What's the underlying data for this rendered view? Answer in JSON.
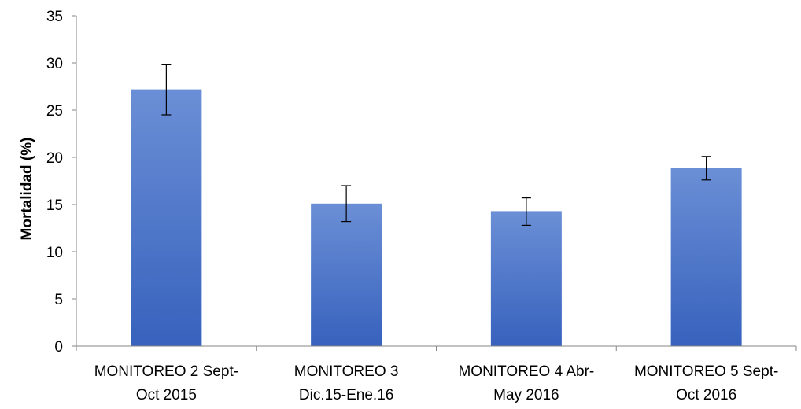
{
  "chart_data": {
    "type": "bar",
    "title": "",
    "xlabel": "",
    "ylabel": "Mortalidad (%)",
    "ylim": [
      0,
      35
    ],
    "yticks": [
      0,
      5,
      10,
      15,
      20,
      25,
      30,
      35
    ],
    "grid": false,
    "legend": "none",
    "categories": [
      [
        "MONITOREO 2 Sept-",
        "Oct 2015"
      ],
      [
        "MONITOREO 3",
        "Dic.15-Ene.16"
      ],
      [
        "MONITOREO 4 Abr-",
        "May 2016"
      ],
      [
        "MONITOREO 5 Sept-",
        "Oct 2016"
      ]
    ],
    "series": [
      {
        "values": [
          27.2,
          15.1,
          14.3,
          18.9
        ],
        "error_low": [
          24.5,
          13.2,
          12.8,
          17.6
        ],
        "error_high": [
          29.8,
          17.0,
          15.7,
          20.1
        ],
        "color_top": "#6b8fd6",
        "color_bottom": "#3762bd"
      }
    ],
    "axis_color": "#868686",
    "error_bar_color": "#000000"
  }
}
